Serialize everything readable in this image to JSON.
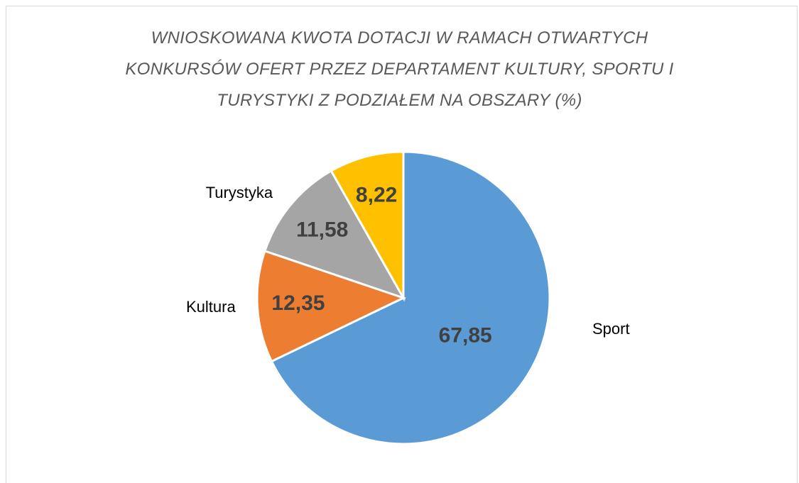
{
  "chart_data": {
    "type": "pie",
    "title": "WNIOSKOWANA KWOTA DOTACJI W RAMACH OTWARTYCH\nKONKURSÓW OFERT PRZEZ DEPARTAMENT KULTURY, SPORTU I\nTURYSTYKI Z PODZIAŁEM NA OBSZARY (%)",
    "categories": [
      "Sport",
      "Kultura",
      "Turystyka",
      null
    ],
    "values": [
      67.85,
      12.35,
      11.58,
      8.22
    ],
    "value_labels": [
      "67,85",
      "12,35",
      "11,58",
      "8,22"
    ],
    "colors": [
      "#5b9bd5",
      "#ed7d31",
      "#a5a5a5",
      "#ffc000"
    ]
  }
}
